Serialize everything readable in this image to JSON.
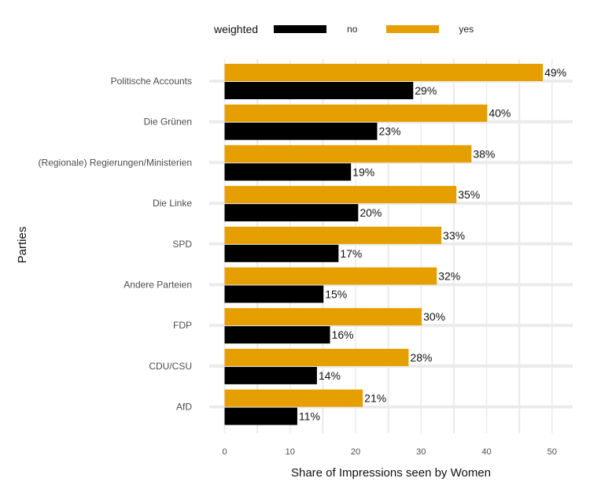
{
  "chart_data": {
    "type": "bar",
    "orientation": "horizontal",
    "legend": {
      "title": "weighted",
      "placement": "top",
      "entries": [
        {
          "label": "no",
          "color": "#000000"
        },
        {
          "label": "yes",
          "color": "#E69F00"
        }
      ]
    },
    "categories": [
      "Politische Accounts",
      "Die Grünen",
      "(Regionale) Regierungen/Ministerien",
      "Die Linke",
      "SPD",
      "Andere Parteien",
      "FDP",
      "CDU/CSU",
      "AfD"
    ],
    "series": [
      {
        "name": "yes",
        "color": "#E69F00",
        "values": [
          48.6,
          40.1,
          37.7,
          35.4,
          33.1,
          32.4,
          30.1,
          28.1,
          21.1
        ],
        "labels": [
          "49%",
          "40%",
          "38%",
          "35%",
          "33%",
          "32%",
          "30%",
          "28%",
          "21%"
        ]
      },
      {
        "name": "no",
        "color": "#000000",
        "values": [
          28.8,
          23.3,
          19.3,
          20.4,
          17.4,
          15.1,
          16.1,
          14.1,
          11.1
        ],
        "labels": [
          "29%",
          "23%",
          "19%",
          "20%",
          "17%",
          "15%",
          "16%",
          "14%",
          "11%"
        ]
      }
    ],
    "xlabel": "Share of Impressions seen by Women",
    "ylabel": "Parties",
    "xlim": [
      0,
      53
    ],
    "xticks": [
      "0",
      "10",
      "20",
      "30",
      "40",
      "50"
    ],
    "grid": true
  }
}
